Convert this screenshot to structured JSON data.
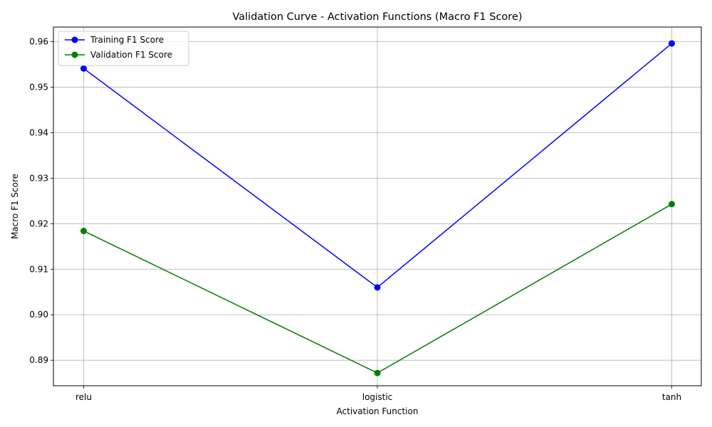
{
  "chart_data": {
    "type": "line",
    "title": "Validation Curve - Activation Functions (Macro F1 Score)",
    "xlabel": "Activation Function",
    "ylabel": "Macro F1 Score",
    "categories": [
      "relu",
      "logistic",
      "tanh"
    ],
    "series": [
      {
        "name": "Training F1 Score",
        "color": "#0000ff",
        "marker": "circle",
        "values": [
          0.9541,
          0.906,
          0.9596
        ]
      },
      {
        "name": "Validation F1 Score",
        "color": "#008000",
        "marker": "circle",
        "values": [
          0.9184,
          0.8872,
          0.9243
        ]
      }
    ],
    "ylim": [
      0.8844,
      0.9632
    ],
    "yticks": [
      0.89,
      0.9,
      0.91,
      0.92,
      0.93,
      0.94,
      0.95,
      0.96
    ],
    "ytick_labels": [
      "0.89",
      "0.90",
      "0.91",
      "0.92",
      "0.93",
      "0.94",
      "0.95",
      "0.96"
    ],
    "grid": true,
    "legend": {
      "position": "upper-left",
      "entries": [
        "Training F1 Score",
        "Validation F1 Score"
      ]
    }
  }
}
